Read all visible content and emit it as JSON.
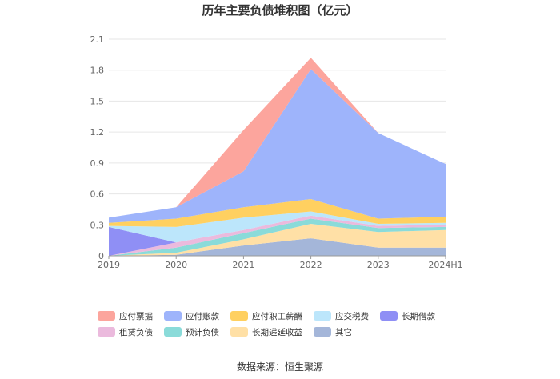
{
  "title": "历年主要负债堆积图（亿元）",
  "source": "数据来源：恒生聚源",
  "colors": {
    "应付票据": "#fca59d",
    "应付账款": "#9eb4fb",
    "应付职工薪酬": "#ffd060",
    "应交税费": "#bce6fb",
    "长期借款": "#8f8ff5",
    "租赁负债": "#ebbadd",
    "预计负债": "#8adbd9",
    "长期递延收益": "#ffe0a6",
    "其它": "#a4b6d9"
  },
  "chart_data": {
    "type": "area",
    "stacked": true,
    "title": "历年主要负债堆积图（亿元）",
    "x": [
      "2019",
      "2020",
      "2021",
      "2022",
      "2023",
      "2024H1"
    ],
    "ylim": [
      0,
      2.1
    ],
    "yticks": [
      "0",
      "0.3",
      "0.6",
      "0.9",
      "1.2",
      "1.5",
      "1.8",
      "2.1"
    ],
    "series": [
      {
        "name": "其它",
        "values": [
          0.0,
          0.01,
          0.1,
          0.17,
          0.08,
          0.08
        ]
      },
      {
        "name": "长期递延收益",
        "values": [
          0.0,
          0.02,
          0.06,
          0.14,
          0.15,
          0.17
        ]
      },
      {
        "name": "预计负债",
        "values": [
          0.0,
          0.05,
          0.06,
          0.05,
          0.04,
          0.03
        ]
      },
      {
        "name": "租赁负债",
        "values": [
          0.0,
          0.05,
          0.03,
          0.03,
          0.02,
          0.02
        ]
      },
      {
        "name": "长期借款",
        "values": [
          0.28,
          0.0,
          0.0,
          0.0,
          0.0,
          0.0
        ]
      },
      {
        "name": "应交税费",
        "values": [
          0.01,
          0.15,
          0.12,
          0.04,
          0.02,
          0.02
        ]
      },
      {
        "name": "应付职工薪酬",
        "values": [
          0.03,
          0.08,
          0.1,
          0.12,
          0.05,
          0.06
        ]
      },
      {
        "name": "应付账款",
        "values": [
          0.05,
          0.11,
          0.35,
          1.26,
          0.83,
          0.51
        ]
      },
      {
        "name": "应付票据",
        "values": [
          0.0,
          0.0,
          0.4,
          0.11,
          0.0,
          0.0
        ]
      }
    ],
    "legend": {
      "position": "bottom",
      "order": [
        "应付票据",
        "应付账款",
        "应付职工薪酬",
        "应交税费",
        "长期借款",
        "租赁负债",
        "预计负债",
        "长期递延收益",
        "其它"
      ]
    },
    "grid": true
  }
}
